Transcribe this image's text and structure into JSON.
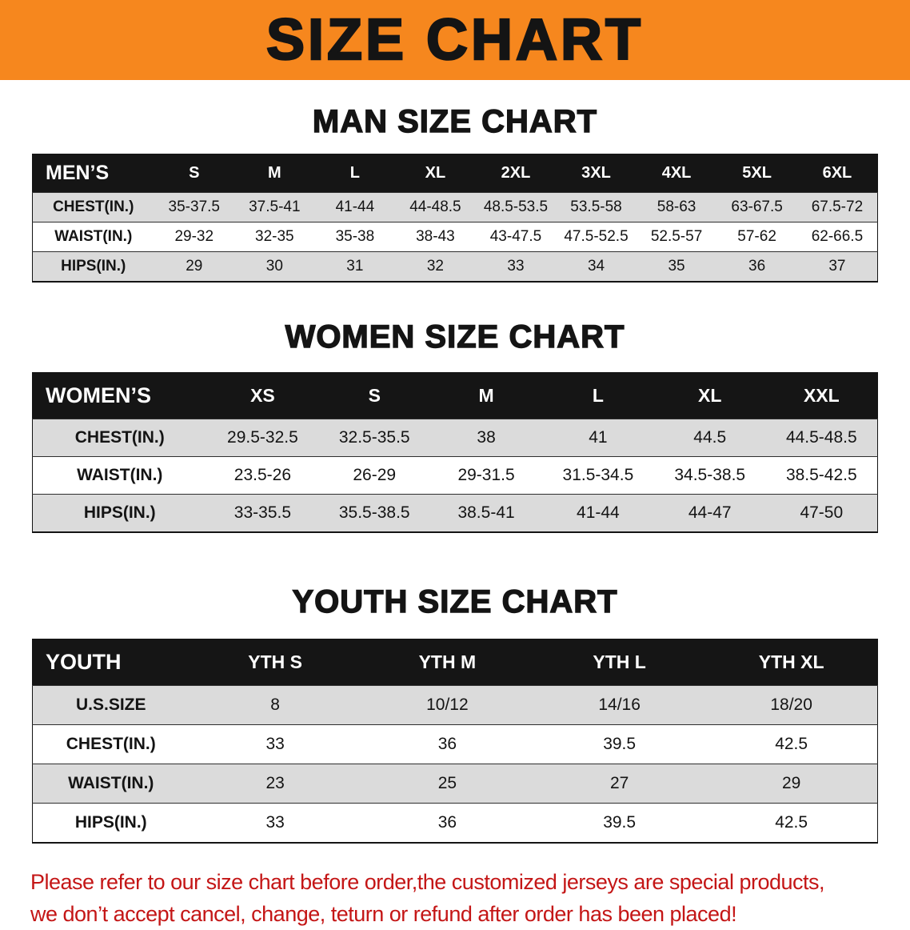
{
  "banner": {
    "title": "SIZE CHART"
  },
  "sections": [
    {
      "id": "men",
      "heading": "MAN SIZE CHART",
      "table": {
        "header": [
          "MEN’S",
          "S",
          "M",
          "L",
          "XL",
          "2XL",
          "3XL",
          "4XL",
          "5XL",
          "6XL"
        ],
        "rows": [
          [
            "CHEST(IN.)",
            "35-37.5",
            "37.5-41",
            "41-44",
            "44-48.5",
            "48.5-53.5",
            "53.5-58",
            "58-63",
            "63-67.5",
            "67.5-72"
          ],
          [
            "WAIST(IN.)",
            "29-32",
            "32-35",
            "35-38",
            "38-43",
            "43-47.5",
            "47.5-52.5",
            "52.5-57",
            "57-62",
            "62-66.5"
          ],
          [
            "HIPS(IN.)",
            "29",
            "30",
            "31",
            "32",
            "33",
            "34",
            "35",
            "36",
            "37"
          ]
        ]
      }
    },
    {
      "id": "women",
      "heading": "WOMEN SIZE CHART",
      "table": {
        "header": [
          "WOMEN’S",
          "XS",
          "S",
          "M",
          "L",
          "XL",
          "XXL"
        ],
        "rows": [
          [
            "CHEST(IN.)",
            "29.5-32.5",
            "32.5-35.5",
            "38",
            "41",
            "44.5",
            "44.5-48.5"
          ],
          [
            "WAIST(IN.)",
            "23.5-26",
            "26-29",
            "29-31.5",
            "31.5-34.5",
            "34.5-38.5",
            "38.5-42.5"
          ],
          [
            "HIPS(IN.)",
            "33-35.5",
            "35.5-38.5",
            "38.5-41",
            "41-44",
            "44-47",
            "47-50"
          ]
        ]
      }
    },
    {
      "id": "youth",
      "heading": "YOUTH SIZE CHART",
      "table": {
        "header": [
          "YOUTH",
          "YTH S",
          "YTH M",
          "YTH L",
          "YTH XL"
        ],
        "rows": [
          [
            "U.S.SIZE",
            "8",
            "10/12",
            "14/16",
            "18/20"
          ],
          [
            "CHEST(IN.)",
            "33",
            "36",
            "39.5",
            "42.5"
          ],
          [
            "WAIST(IN.)",
            "23",
            "25",
            "27",
            "29"
          ],
          [
            "HIPS(IN.)",
            "33",
            "36",
            "39.5",
            "42.5"
          ]
        ]
      }
    }
  ],
  "disclaimer": {
    "lines": [
      "Please refer to our size chart before order,the customized jerseys are special products,",
      "we don’t accept cancel, change, teturn or refund after order has been placed!"
    ]
  },
  "colors": {
    "banner_orange": "#F6871E",
    "header_black": "#151515",
    "row_gray": "#DBDBDB",
    "disclaimer_red": "#C41616"
  }
}
